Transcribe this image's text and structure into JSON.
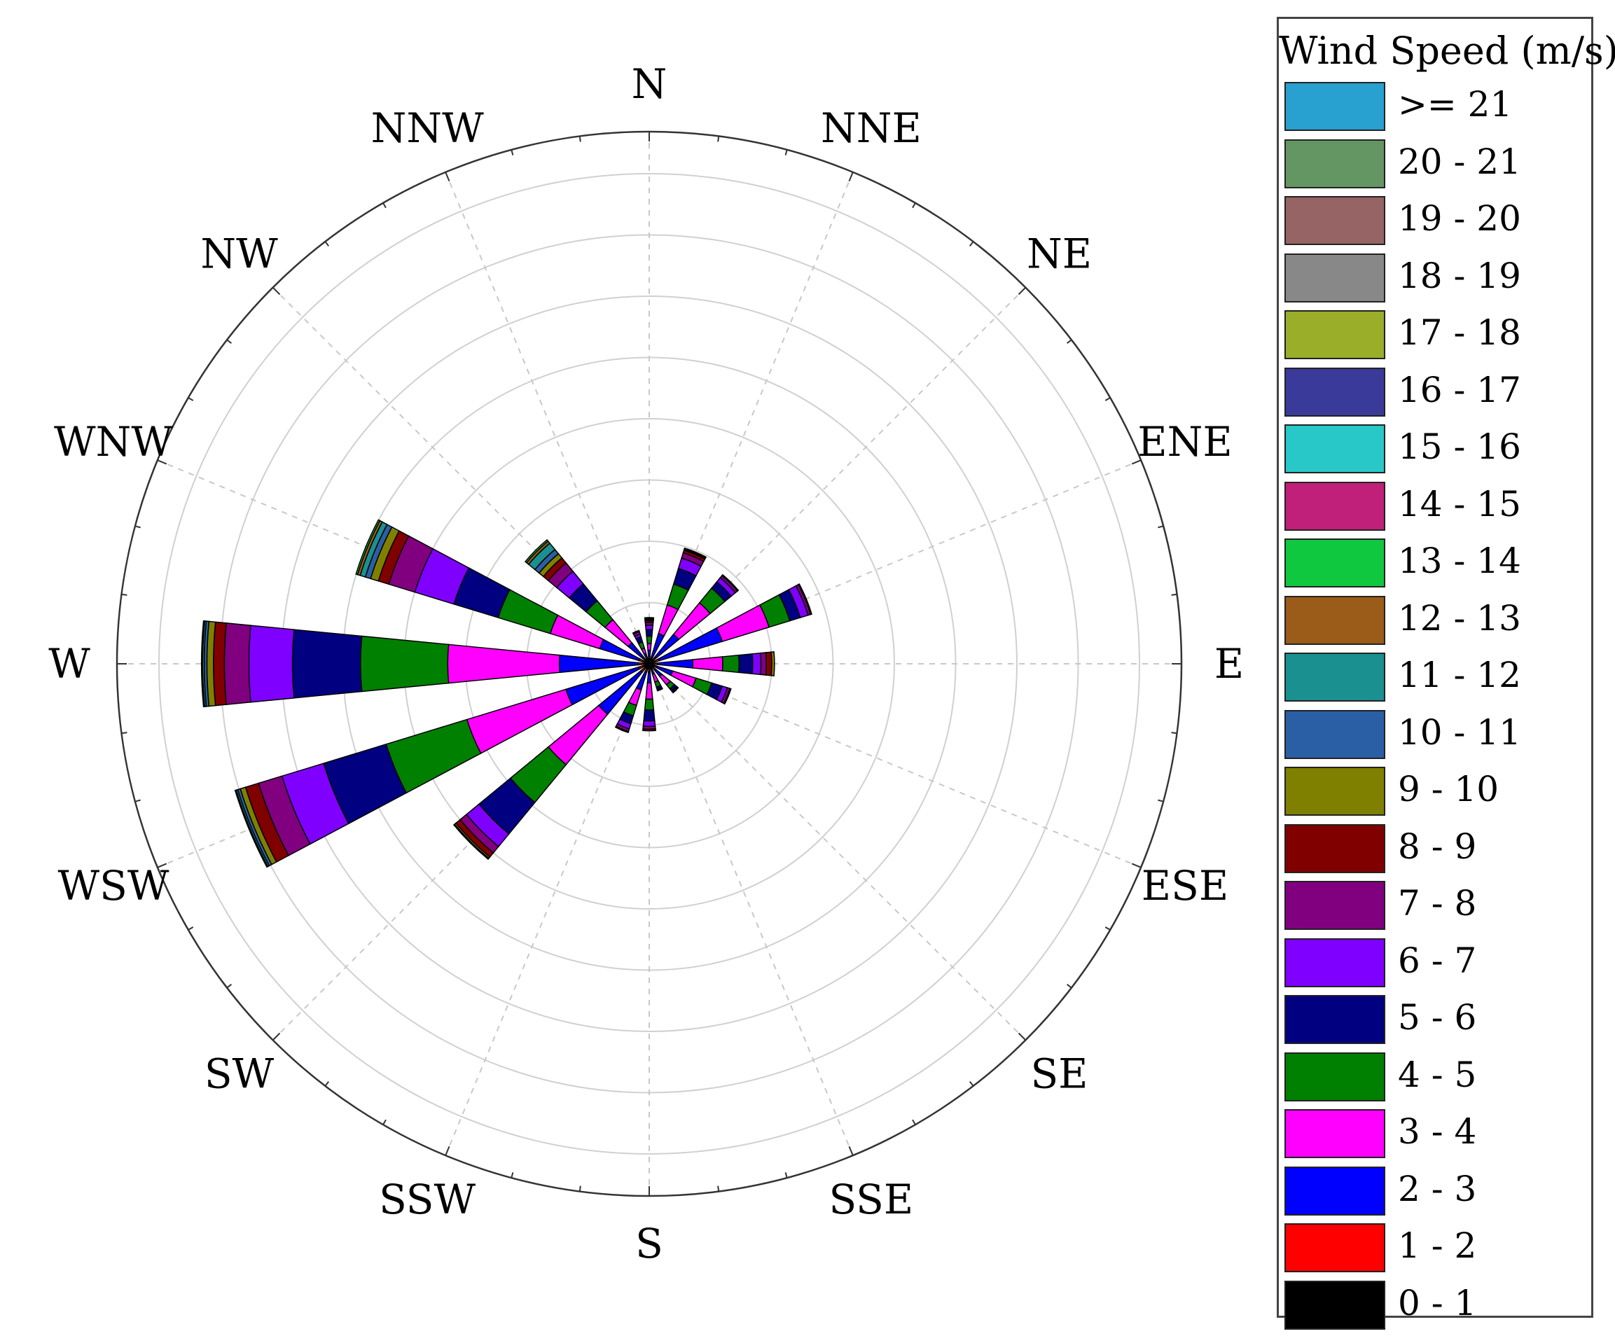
{
  "chart_data": {
    "type": "wind-rose",
    "legend_title": "Wind Speed (m/s)",
    "legend_placement": "right",
    "directions": [
      "N",
      "NNE",
      "NE",
      "ENE",
      "E",
      "ESE",
      "SE",
      "SSE",
      "S",
      "SSW",
      "SW",
      "WSW",
      "W",
      "WNW",
      "NW",
      "NNW"
    ],
    "bins": [
      {
        "label": "0 - 1",
        "color": "#000000"
      },
      {
        "label": "1 - 2",
        "color": "#ff0000"
      },
      {
        "label": "2 - 3",
        "color": "#0000ff"
      },
      {
        "label": "3 - 4",
        "color": "#ff00ff"
      },
      {
        "label": "4 - 5",
        "color": "#008000"
      },
      {
        "label": "5 - 6",
        "color": "#000080"
      },
      {
        "label": "6 - 7",
        "color": "#8000ff"
      },
      {
        "label": "7 - 8",
        "color": "#800080"
      },
      {
        "label": "8 - 9",
        "color": "#800000"
      },
      {
        "label": "9 - 10",
        "color": "#808000"
      },
      {
        "label": "10 - 11",
        "color": "#2a5fa5"
      },
      {
        "label": "11 - 12",
        "color": "#1a9090"
      },
      {
        "label": "12 - 13",
        "color": "#9a5c18"
      },
      {
        "label": "13 - 14",
        "color": "#10c840"
      },
      {
        "label": "14 - 15",
        "color": "#c0207a"
      },
      {
        "label": "15 - 16",
        "color": "#28c8c8"
      },
      {
        "label": "16 - 17",
        "color": "#3a3a9a"
      },
      {
        "label": "17 - 18",
        "color": "#9aae2a"
      },
      {
        "label": "18 - 19",
        "color": "#888888"
      },
      {
        "label": "19 - 20",
        "color": "#966464"
      },
      {
        "label": "20 - 21",
        "color": "#649664"
      },
      {
        "label": ">= 21",
        "color": "#28a0d0"
      }
    ],
    "radial_max": 9,
    "grid": true,
    "series": [
      {
        "direction": "N",
        "values": [
          0.05,
          0.08,
          0.12,
          0.12,
          0.14,
          0.12,
          0.08,
          0.05,
          0.03,
          0.02,
          0.02,
          0.02,
          0,
          0,
          0,
          0,
          0,
          0,
          0,
          0,
          0,
          0
        ]
      },
      {
        "direction": "NNE",
        "values": [
          0.05,
          0.08,
          0.45,
          0.55,
          0.4,
          0.3,
          0.2,
          0.1,
          0.05,
          0.02,
          0.02,
          0,
          0,
          0,
          0,
          0,
          0,
          0,
          0,
          0,
          0,
          0
        ]
      },
      {
        "direction": "NE",
        "values": [
          0.05,
          0.1,
          0.55,
          0.75,
          0.35,
          0.15,
          0.1,
          0.05,
          0.02,
          0,
          0,
          0,
          0,
          0,
          0,
          0,
          0,
          0,
          0,
          0,
          0,
          0
        ]
      },
      {
        "direction": "ENE",
        "values": [
          0.05,
          0.15,
          1.2,
          0.9,
          0.4,
          0.2,
          0.15,
          0.05,
          0.02,
          0,
          0,
          0,
          0,
          0,
          0,
          0,
          0,
          0,
          0,
          0,
          0,
          0
        ]
      },
      {
        "direction": "E",
        "values": [
          0.05,
          0.1,
          0.65,
          0.55,
          0.3,
          0.25,
          0.15,
          0.1,
          0.1,
          0.05,
          0,
          0,
          0,
          0,
          0,
          0,
          0,
          0,
          0,
          0,
          0,
          0
        ]
      },
      {
        "direction": "ESE",
        "values": [
          0.05,
          0.1,
          0.3,
          0.45,
          0.3,
          0.2,
          0.1,
          0.05,
          0.02,
          0,
          0,
          0,
          0,
          0,
          0,
          0,
          0,
          0,
          0,
          0,
          0,
          0
        ]
      },
      {
        "direction": "SE",
        "values": [
          0.05,
          0.1,
          0.15,
          0.2,
          0.1,
          0.05,
          0.02,
          0.02,
          0,
          0,
          0,
          0,
          0,
          0,
          0,
          0,
          0,
          0,
          0,
          0,
          0,
          0
        ]
      },
      {
        "direction": "SSE",
        "values": [
          0.05,
          0.05,
          0.1,
          0.15,
          0.1,
          0.05,
          0.02,
          0,
          0,
          0,
          0,
          0,
          0,
          0,
          0,
          0,
          0,
          0,
          0,
          0,
          0,
          0
        ]
      },
      {
        "direction": "S",
        "values": [
          0.05,
          0.1,
          0.2,
          0.3,
          0.2,
          0.2,
          0.1,
          0.05,
          0.03,
          0,
          0,
          0,
          0,
          0,
          0,
          0,
          0,
          0,
          0,
          0,
          0,
          0
        ]
      },
      {
        "direction": "SSW",
        "values": [
          0.05,
          0.1,
          0.35,
          0.3,
          0.2,
          0.15,
          0.1,
          0.05,
          0.02,
          0,
          0,
          0,
          0,
          0,
          0,
          0,
          0,
          0,
          0,
          0,
          0,
          0
        ]
      },
      {
        "direction": "SW",
        "values": [
          0.05,
          0.15,
          1.0,
          1.2,
          0.9,
          0.75,
          0.3,
          0.15,
          0.1,
          0.03,
          0.02,
          0,
          0,
          0,
          0,
          0,
          0,
          0,
          0,
          0,
          0,
          0
        ]
      },
      {
        "direction": "WSW",
        "values": [
          0.05,
          0.15,
          1.4,
          1.9,
          1.55,
          1.2,
          0.8,
          0.45,
          0.25,
          0.1,
          0.05,
          0.03,
          0.02,
          0,
          0,
          0,
          0,
          0,
          0,
          0,
          0,
          0
        ]
      },
      {
        "direction": "W",
        "values": [
          0.05,
          0.15,
          1.45,
          2.05,
          1.6,
          1.25,
          0.8,
          0.45,
          0.2,
          0.12,
          0.05,
          0.03,
          0.02,
          0,
          0,
          0,
          0,
          0,
          0,
          0,
          0,
          0
        ]
      },
      {
        "direction": "WNW",
        "values": [
          0.05,
          0.15,
          0.75,
          0.95,
          1.0,
          0.85,
          0.75,
          0.5,
          0.2,
          0.15,
          0.1,
          0.1,
          0.05,
          0.03,
          0,
          0,
          0,
          0,
          0,
          0,
          0,
          0
        ]
      },
      {
        "direction": "NW",
        "values": [
          0.05,
          0.1,
          0.35,
          0.55,
          0.45,
          0.4,
          0.3,
          0.2,
          0.12,
          0.1,
          0.1,
          0.15,
          0.05,
          0.03,
          0,
          0,
          0,
          0,
          0,
          0,
          0,
          0
        ]
      },
      {
        "direction": "NNW",
        "values": [
          0.05,
          0.05,
          0.1,
          0.1,
          0.12,
          0.1,
          0.05,
          0.05,
          0.02,
          0,
          0,
          0,
          0,
          0,
          0,
          0,
          0,
          0,
          0,
          0,
          0,
          0
        ]
      }
    ]
  }
}
